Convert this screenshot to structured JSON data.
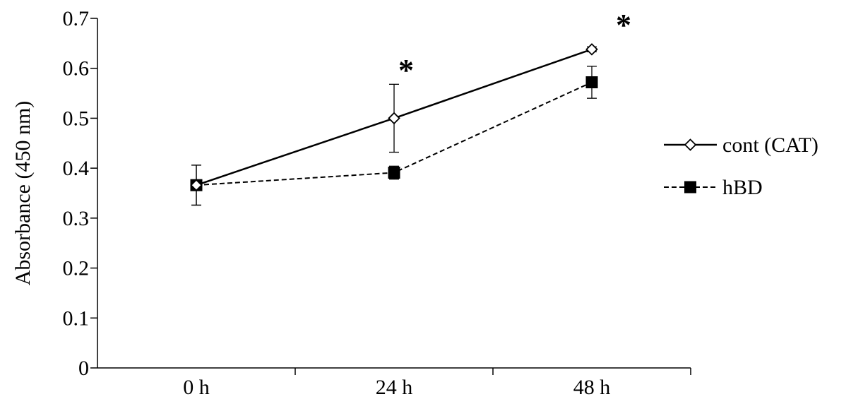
{
  "chart_data": {
    "type": "line",
    "title": "",
    "xlabel": "",
    "ylabel": "Absorbance (450 nm)",
    "categories": [
      "0 h",
      "24 h",
      "48 h"
    ],
    "ylim": [
      0,
      0.7
    ],
    "yticks": [
      "0",
      "0.1",
      "0.2",
      "0.3",
      "0.4",
      "0.5",
      "0.6",
      "0.7"
    ],
    "grid": false,
    "legend_position": "right",
    "series": [
      {
        "name": "cont (CAT)",
        "values": [
          0.366,
          0.5,
          0.638
        ],
        "errors": [
          0.04,
          0.068,
          0.005
        ],
        "marker": "diamond-open",
        "line": "solid",
        "color": "#000000"
      },
      {
        "name": "hBD",
        "values": [
          0.366,
          0.391,
          0.572
        ],
        "errors": [
          0.04,
          0.013,
          0.032
        ],
        "marker": "square-filled",
        "line": "dashed",
        "color": "#000000"
      }
    ],
    "annotations": [
      {
        "text": "*",
        "category": "24 h"
      },
      {
        "text": "*",
        "category": "48 h"
      }
    ]
  }
}
